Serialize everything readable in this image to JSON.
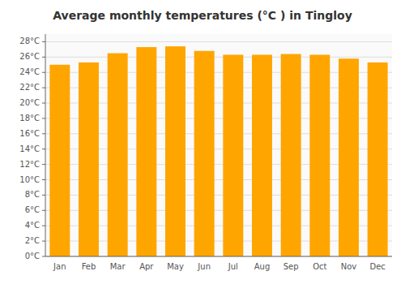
{
  "chart_data": {
    "type": "bar",
    "title": "Average monthly temperatures (°C ) in Tingloy",
    "categories": [
      "Jan",
      "Feb",
      "Mar",
      "Apr",
      "May",
      "Jun",
      "Jul",
      "Aug",
      "Sep",
      "Oct",
      "Nov",
      "Dec"
    ],
    "values": [
      25.0,
      25.3,
      26.5,
      27.3,
      27.4,
      26.8,
      26.3,
      26.3,
      26.4,
      26.3,
      25.8,
      25.3
    ],
    "color": "#FFA500",
    "ylim": [
      0,
      29
    ],
    "yticks": [
      {
        "value": 0,
        "label": "0°C"
      },
      {
        "value": 2,
        "label": "2°C"
      },
      {
        "value": 4,
        "label": "4°C"
      },
      {
        "value": 6,
        "label": "6°C"
      },
      {
        "value": 8,
        "label": "8°C"
      },
      {
        "value": 10,
        "label": "10°C"
      },
      {
        "value": 12,
        "label": "12°C"
      },
      {
        "value": 14,
        "label": "14°C"
      },
      {
        "value": 16,
        "label": "16°C"
      },
      {
        "value": 18,
        "label": "18°C"
      },
      {
        "value": 20,
        "label": "20°C"
      },
      {
        "value": 22,
        "label": "22°C"
      },
      {
        "value": 24,
        "label": "24°C"
      },
      {
        "value": 26,
        "label": "26°C"
      },
      {
        "value": 28,
        "label": "28°C"
      }
    ],
    "grid": true
  }
}
